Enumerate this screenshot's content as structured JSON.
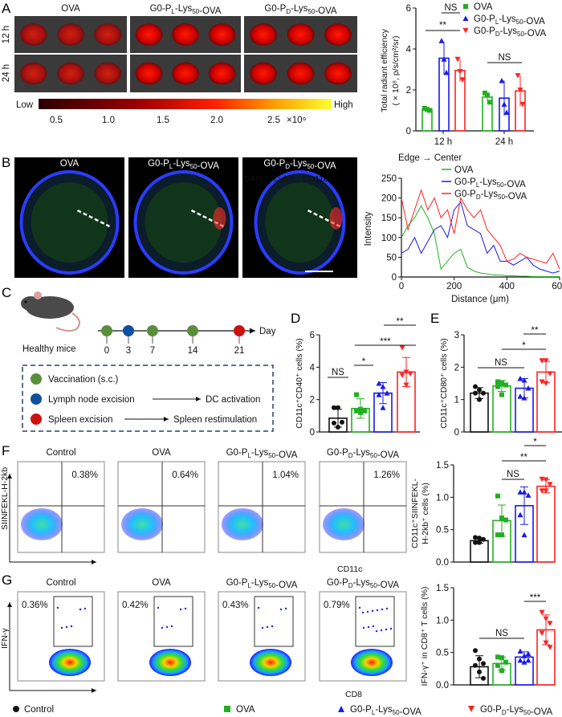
{
  "panel_labels": [
    "A",
    "B",
    "C",
    "D",
    "E",
    "F",
    "G"
  ],
  "colors": {
    "Control": "#111111",
    "OVA": "#22b022",
    "G0-PL-Lys50-OVA": "#1a1ae6",
    "G0-PD-Lys50-OVA": "#ff2222"
  },
  "panel_a": {
    "columns": [
      "OVA",
      "G0-PL-Lys50-OVA",
      "G0-PD-Lys50-OVA"
    ],
    "rows": [
      "12 h",
      "24 h"
    ],
    "colorbar": {
      "low": "Low",
      "high": "High",
      "ticks": [
        "0.5",
        "1.0",
        "1.5",
        "2.0",
        "2.5"
      ],
      "exponent": "×10⁹"
    }
  },
  "panel_b": {
    "columns": [
      "OVA",
      "G0-PL-Lys50-OVA",
      "G0-PD-Lys50-OVA"
    ],
    "stains": [
      {
        "label": "DAPI",
        "color": "#3a3aff"
      },
      {
        "label": "Cy5.5",
        "color": "#ff2a2a"
      },
      {
        "label": "CD11c",
        "color": "#22dd22"
      }
    ]
  },
  "panel_c": {
    "mouse_label": "Healthy mice",
    "axis_label": "Day",
    "days": [
      {
        "day": "0",
        "event": "vaccination"
      },
      {
        "day": "3",
        "event": "lymph"
      },
      {
        "day": "7",
        "event": "vaccination"
      },
      {
        "day": "14",
        "event": "vaccination"
      },
      {
        "day": "21",
        "event": "spleen"
      }
    ],
    "legend": [
      {
        "key": "vaccination",
        "color": "#5a8f3a",
        "label": "Vaccination (s.c.)",
        "result": ""
      },
      {
        "key": "lymph",
        "color": "#0e4fa0",
        "label": "Lymph node excision",
        "result": "DC activation"
      },
      {
        "key": "spleen",
        "color": "#cc1111",
        "label": "Spleen excision",
        "result": "Spleen restimulation"
      }
    ]
  },
  "panel_f": {
    "groups": [
      "Control",
      "OVA",
      "G0-PL-Lys50-OVA",
      "G0-PD-Lys50-OVA"
    ],
    "percents": [
      "0.38%",
      "0.64%",
      "1.04%",
      "1.26%"
    ],
    "ylabel": "SIINFEKL-H-2kb",
    "xlabel": "CD11c"
  },
  "panel_g": {
    "groups": [
      "Control",
      "OVA",
      "G0-PL-Lys50-OVA",
      "G0-PD-Lys50-OVA"
    ],
    "percents": [
      "0.36%",
      "0.42%",
      "0.43%",
      "0.79%"
    ],
    "ylabel": "IFN-γ",
    "xlabel": "CD8"
  },
  "legend": [
    "Control",
    "OVA",
    "G0-PL-Lys50-OVA",
    "G0-PD-Lys50-OVA"
  ],
  "chart_data": [
    {
      "id": "A",
      "type": "bar",
      "ylabel": "Total radiant efficiency",
      "ylabel2": "( × 10⁸, p/s/cm²/sr)",
      "categories": [
        "12 h",
        "24 h"
      ],
      "ylim": [
        0,
        6
      ],
      "yticks": [
        "0",
        "2",
        "4",
        "6"
      ],
      "legend": [
        "OVA",
        "G0-PL-Lys50-OVA",
        "G0-PD-Lys50-OVA"
      ],
      "series": [
        {
          "name": "OVA",
          "values": [
            1.05,
            1.65
          ],
          "errors": [
            0.05,
            0.2
          ],
          "points": [
            [
              1.1,
              1.05,
              1.0
            ],
            [
              1.85,
              1.75,
              1.4
            ]
          ]
        },
        {
          "name": "G0-PL-Lys50-OVA",
          "values": [
            3.55,
            1.6
          ],
          "errors": [
            0.8,
            0.85
          ],
          "points": [
            [
              4.4,
              3.5,
              2.85
            ],
            [
              2.45,
              1.3,
              0.9
            ]
          ]
        },
        {
          "name": "G0-PD-Lys50-OVA",
          "values": [
            2.95,
            1.95
          ],
          "errors": [
            0.55,
            0.75
          ],
          "points": [
            [
              3.5,
              2.9,
              2.5
            ],
            [
              2.7,
              2.0,
              1.3
            ]
          ]
        }
      ],
      "significance": [
        {
          "label": "**"
        },
        {
          "label": "NS"
        },
        {
          "label": "NS"
        }
      ]
    },
    {
      "id": "B",
      "type": "line",
      "annotation": "Edge → Center",
      "xlabel": "Distance (μm)",
      "ylabel": "Intensity",
      "xlim": [
        0,
        600
      ],
      "ylim": [
        0,
        250
      ],
      "xticks": [
        "0",
        "200",
        "400",
        "600"
      ],
      "yticks": [
        "0",
        "50",
        "100",
        "150",
        "200",
        "250"
      ],
      "x": [
        0,
        25,
        50,
        75,
        100,
        125,
        150,
        175,
        200,
        225,
        250,
        275,
        300,
        325,
        350,
        375,
        400,
        425,
        450,
        475,
        500,
        525,
        550,
        575,
        600
      ],
      "series": [
        {
          "name": "OVA",
          "values": [
            100,
            130,
            150,
            180,
            150,
            110,
            20,
            40,
            60,
            70,
            25,
            15,
            10,
            8,
            5,
            5,
            3,
            3,
            2,
            2,
            1,
            1,
            1,
            1,
            1
          ]
        },
        {
          "name": "G0-PL-Lys50-OVA",
          "values": [
            60,
            70,
            100,
            60,
            90,
            120,
            130,
            100,
            170,
            190,
            130,
            120,
            110,
            60,
            80,
            40,
            40,
            30,
            40,
            50,
            30,
            20,
            15,
            10,
            15
          ]
        },
        {
          "name": "G0-PD-Lys50-OVA",
          "values": [
            200,
            120,
            170,
            220,
            170,
            200,
            150,
            170,
            110,
            200,
            170,
            150,
            170,
            120,
            100,
            80,
            40,
            45,
            60,
            50,
            45,
            40,
            35,
            60,
            20
          ]
        }
      ]
    },
    {
      "id": "D",
      "type": "bar",
      "ylabel": "CD11c⁺CD40⁺ cells (%)",
      "categories": [
        "Control",
        "OVA",
        "G0-PL-Lys50-OVA",
        "G0-PD-Lys50-OVA"
      ],
      "ylim": [
        0,
        6
      ],
      "yticks": [
        "0",
        "2",
        "4",
        "6"
      ],
      "values": [
        0.85,
        1.45,
        2.4,
        3.7
      ],
      "errors": [
        0.55,
        0.6,
        0.65,
        0.9
      ],
      "points": [
        [
          1.5,
          1.5,
          0.6,
          0.55,
          0.3
        ],
        [
          2.3,
          1.4,
          1.3,
          1.3,
          1.2
        ],
        [
          3.0,
          2.8,
          2.4,
          2.3,
          1.5
        ],
        [
          5.2,
          3.7,
          3.6,
          3.5,
          2.9
        ]
      ],
      "significance": [
        {
          "label": "NS"
        },
        {
          "label": "*"
        },
        {
          "label": "***"
        },
        {
          "label": "**"
        }
      ]
    },
    {
      "id": "E",
      "type": "bar",
      "ylabel": "CD11c⁺CD80⁺ cells (%)",
      "categories": [
        "Control",
        "OVA",
        "G0-PL-Lys50-OVA",
        "G0-PD-Lys50-OVA"
      ],
      "ylim": [
        0,
        3
      ],
      "yticks": [
        "0",
        "1",
        "2",
        "3"
      ],
      "values": [
        1.2,
        1.42,
        1.35,
        1.85
      ],
      "errors": [
        0.17,
        0.17,
        0.3,
        0.33
      ],
      "points": [
        [
          1.4,
          1.3,
          1.2,
          1.2,
          1.0
        ],
        [
          1.55,
          1.5,
          1.45,
          1.4,
          1.15
        ],
        [
          1.65,
          1.6,
          1.35,
          1.1,
          1.05
        ],
        [
          2.2,
          2.2,
          1.8,
          1.55,
          1.5
        ]
      ],
      "significance": [
        {
          "label": "NS"
        },
        {
          "label": "*"
        },
        {
          "label": "**"
        }
      ]
    },
    {
      "id": "F",
      "type": "bar",
      "ylabel": "CD11c⁺SIINFEKL-",
      "ylabel2": "H-2kb⁺ cells (%)",
      "categories": [
        "Control",
        "OVA",
        "G0-PL-Lys50-OVA",
        "G0-PD-Lys50-OVA"
      ],
      "ylim": [
        0,
        1.5
      ],
      "yticks": [
        "0.0",
        "0.5",
        "1.0",
        "1.5"
      ],
      "values": [
        0.33,
        0.64,
        0.87,
        1.17
      ],
      "errors": [
        0.04,
        0.24,
        0.29,
        0.1
      ],
      "points": [
        [
          0.38,
          0.37,
          0.35,
          0.3,
          0.3
        ],
        [
          1.02,
          0.68,
          0.65,
          0.42,
          0.42
        ],
        [
          1.08,
          1.08,
          1.03,
          0.73,
          0.42
        ],
        [
          1.28,
          1.27,
          1.2,
          1.1,
          1.1
        ]
      ],
      "significance": [
        {
          "label": "NS"
        },
        {
          "label": "**"
        },
        {
          "label": "*"
        }
      ]
    },
    {
      "id": "G",
      "type": "bar",
      "ylabel": "IFN-γ⁺ in CD8⁺ T cells (%)",
      "categories": [
        "Control",
        "OVA",
        "G0-PL-Lys50-OVA",
        "G0-PD-Lys50-OVA"
      ],
      "ylim": [
        0,
        1.5
      ],
      "yticks": [
        "0.0",
        "0.5",
        "1.0",
        "1.5"
      ],
      "values": [
        0.28,
        0.33,
        0.43,
        0.85
      ],
      "errors": [
        0.17,
        0.1,
        0.08,
        0.23
      ],
      "points": [
        [
          0.53,
          0.4,
          0.33,
          0.3,
          0.2,
          0.1
        ],
        [
          0.43,
          0.42,
          0.35,
          0.3,
          0.22
        ],
        [
          0.52,
          0.45,
          0.38,
          0.38,
          0.35,
          0.48
        ],
        [
          1.12,
          1.02,
          0.95,
          0.8,
          0.65,
          0.58
        ]
      ],
      "significance": [
        {
          "label": "NS"
        },
        {
          "label": "***"
        }
      ]
    }
  ]
}
